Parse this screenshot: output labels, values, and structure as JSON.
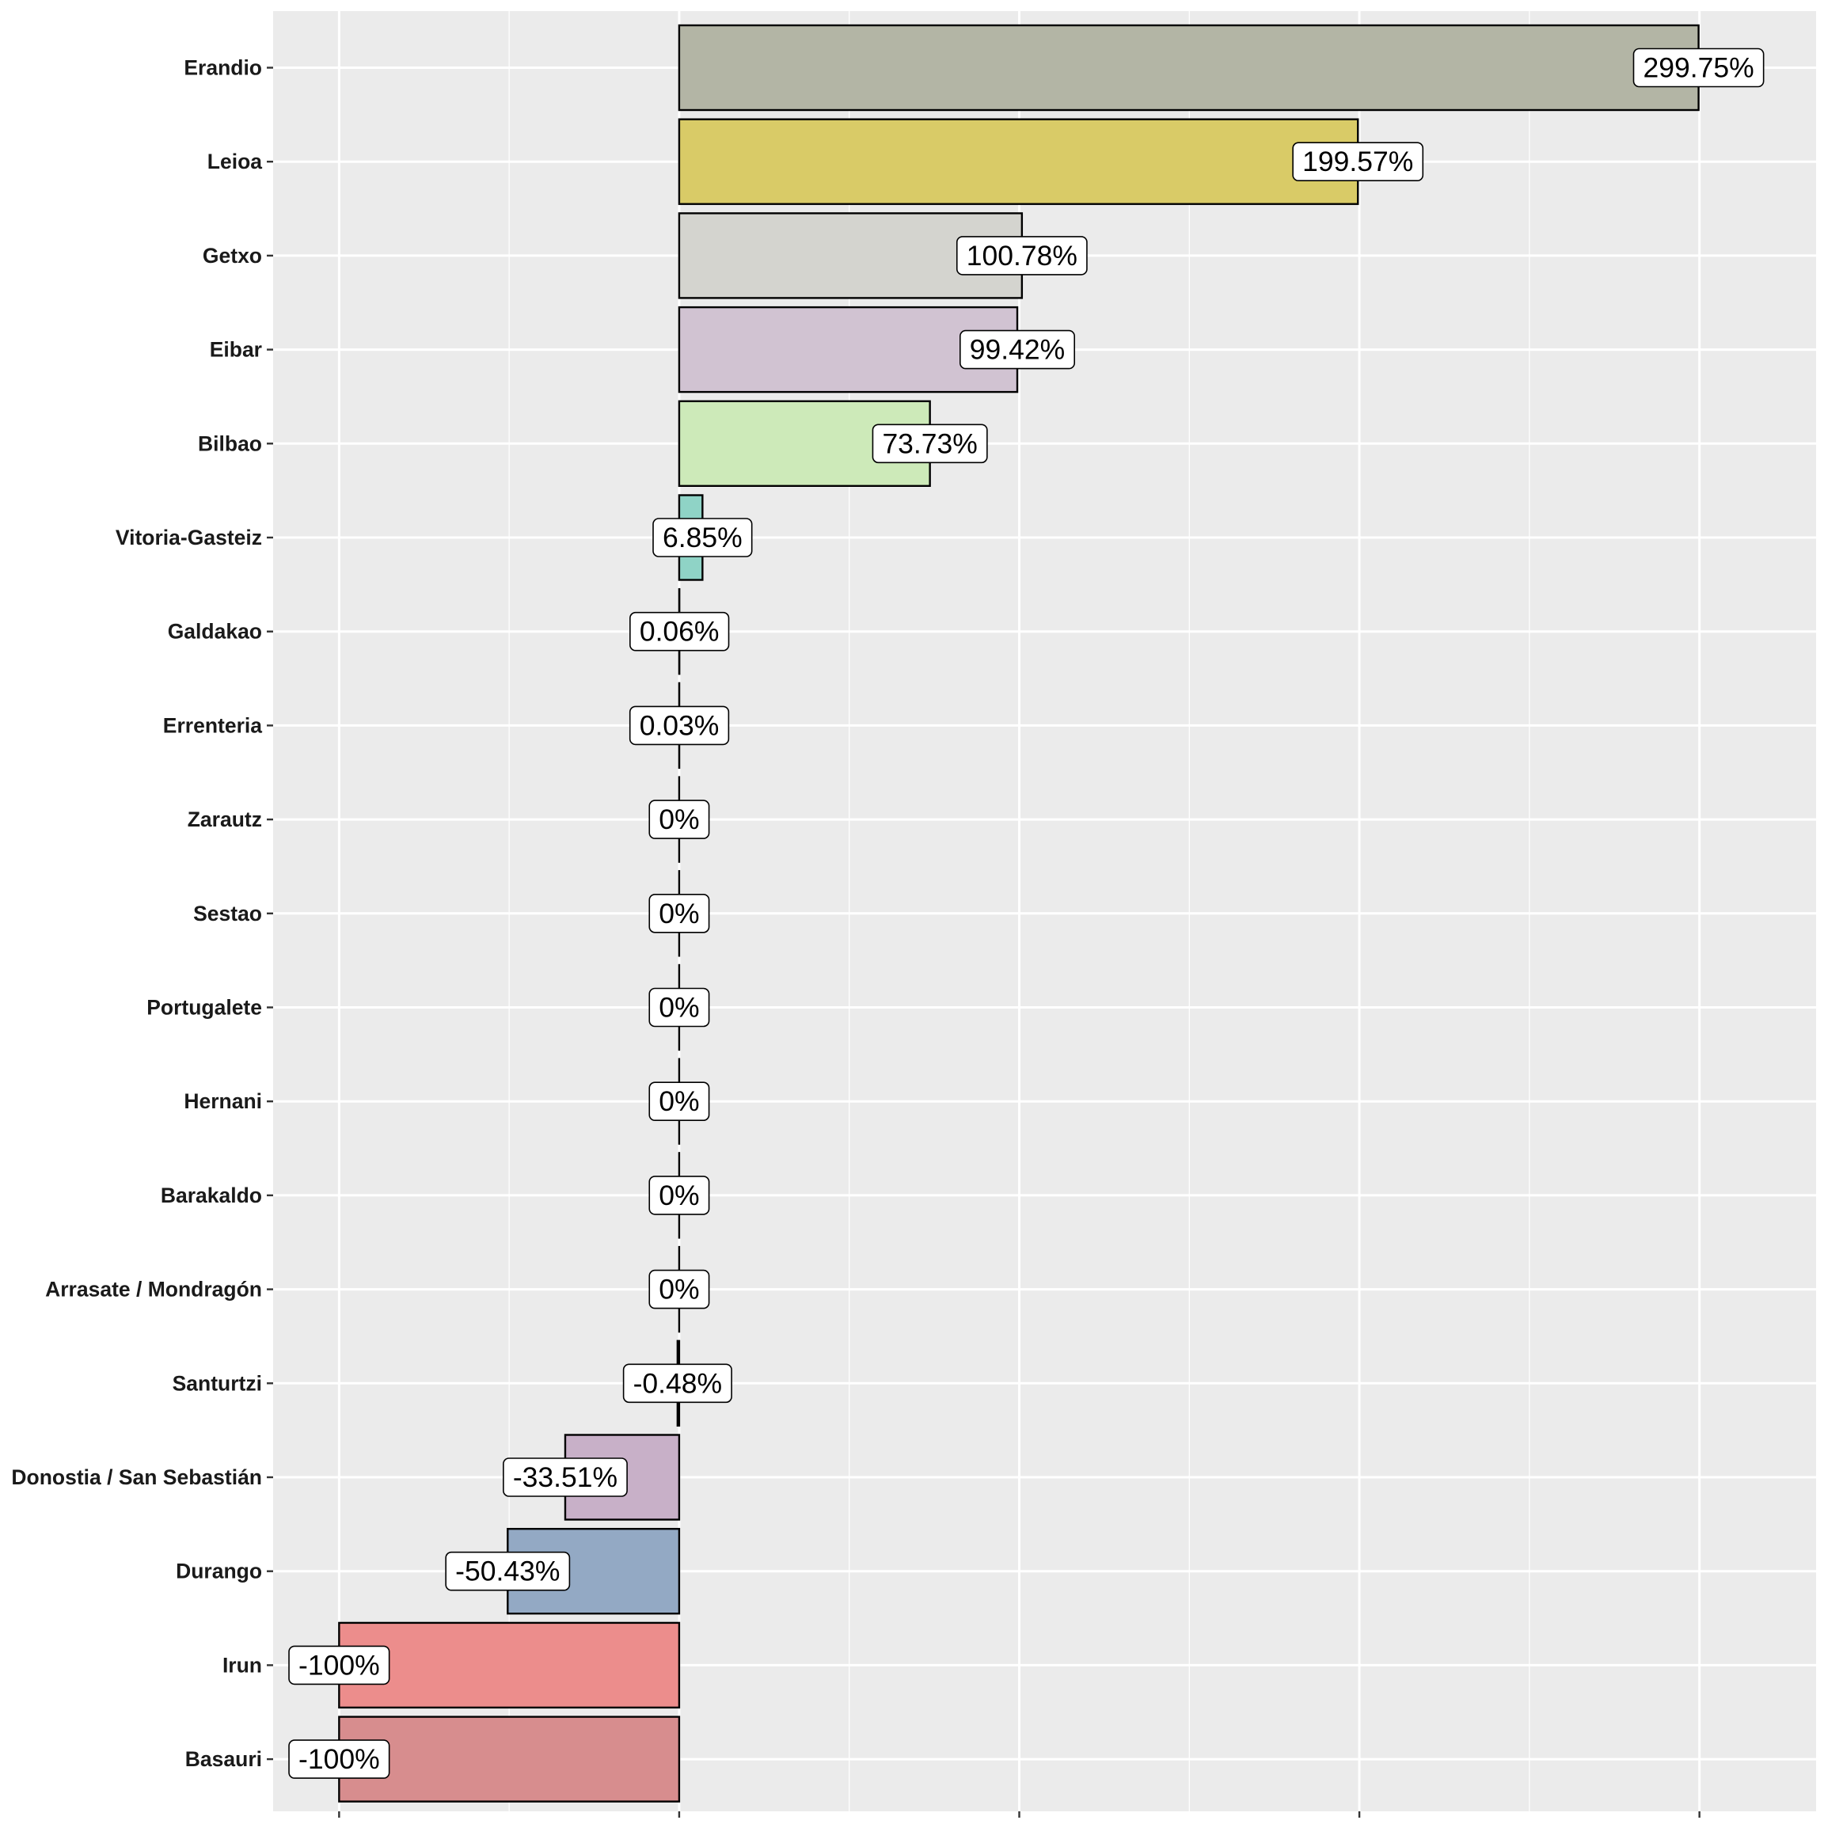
{
  "chart_data": {
    "type": "bar",
    "orientation": "horizontal",
    "title": "",
    "xlabel": "",
    "ylabel": "",
    "xlim": [
      -119.4,
      334.3
    ],
    "x_breaks": [
      -100,
      0,
      100,
      200,
      300
    ],
    "show_x_tick_labels": false,
    "grid": true,
    "categories": [
      "Erandio",
      "Leioa",
      "Getxo",
      "Eibar",
      "Bilbao",
      "Vitoria-Gasteiz",
      "Galdakao",
      "Errenteria",
      "Zarautz",
      "Sestao",
      "Portugalete",
      "Hernani",
      "Barakaldo",
      "Arrasate / Mondragón",
      "Santurtzi",
      "Donostia / San Sebastián",
      "Durango",
      "Irun",
      "Basauri"
    ],
    "values": [
      299.75,
      199.57,
      100.78,
      99.42,
      73.73,
      6.85,
      0.06,
      0.03,
      0,
      0,
      0,
      0,
      0,
      0,
      -0.48,
      -33.51,
      -50.43,
      -100,
      -100
    ],
    "labels": [
      "299.75%",
      "199.57%",
      "100.78%",
      "99.42%",
      "73.73%",
      "6.85%",
      "0.06%",
      "0.03%",
      "0%",
      "0%",
      "0%",
      "0%",
      "0%",
      "0%",
      "-0.48%",
      "-33.51%",
      "-50.43%",
      "-100%",
      "-100%"
    ],
    "colors": [
      "#b3b5a5",
      "#d9cb67",
      "#d4d4cf",
      "#d1c3d2",
      "#cdeab9",
      "#8fd3c6",
      "#c2c09a",
      "#b9c9a1",
      "#cfcfcf",
      "#cfcfcf",
      "#cfcfcf",
      "#cfcfcf",
      "#cfcfcf",
      "#cfcfcf",
      "#b7a6bd",
      "#c8b0c8",
      "#93a9c4",
      "#ec8d8c",
      "#d78d8e"
    ],
    "panel_color": "#ebebeb",
    "legend": "none"
  }
}
